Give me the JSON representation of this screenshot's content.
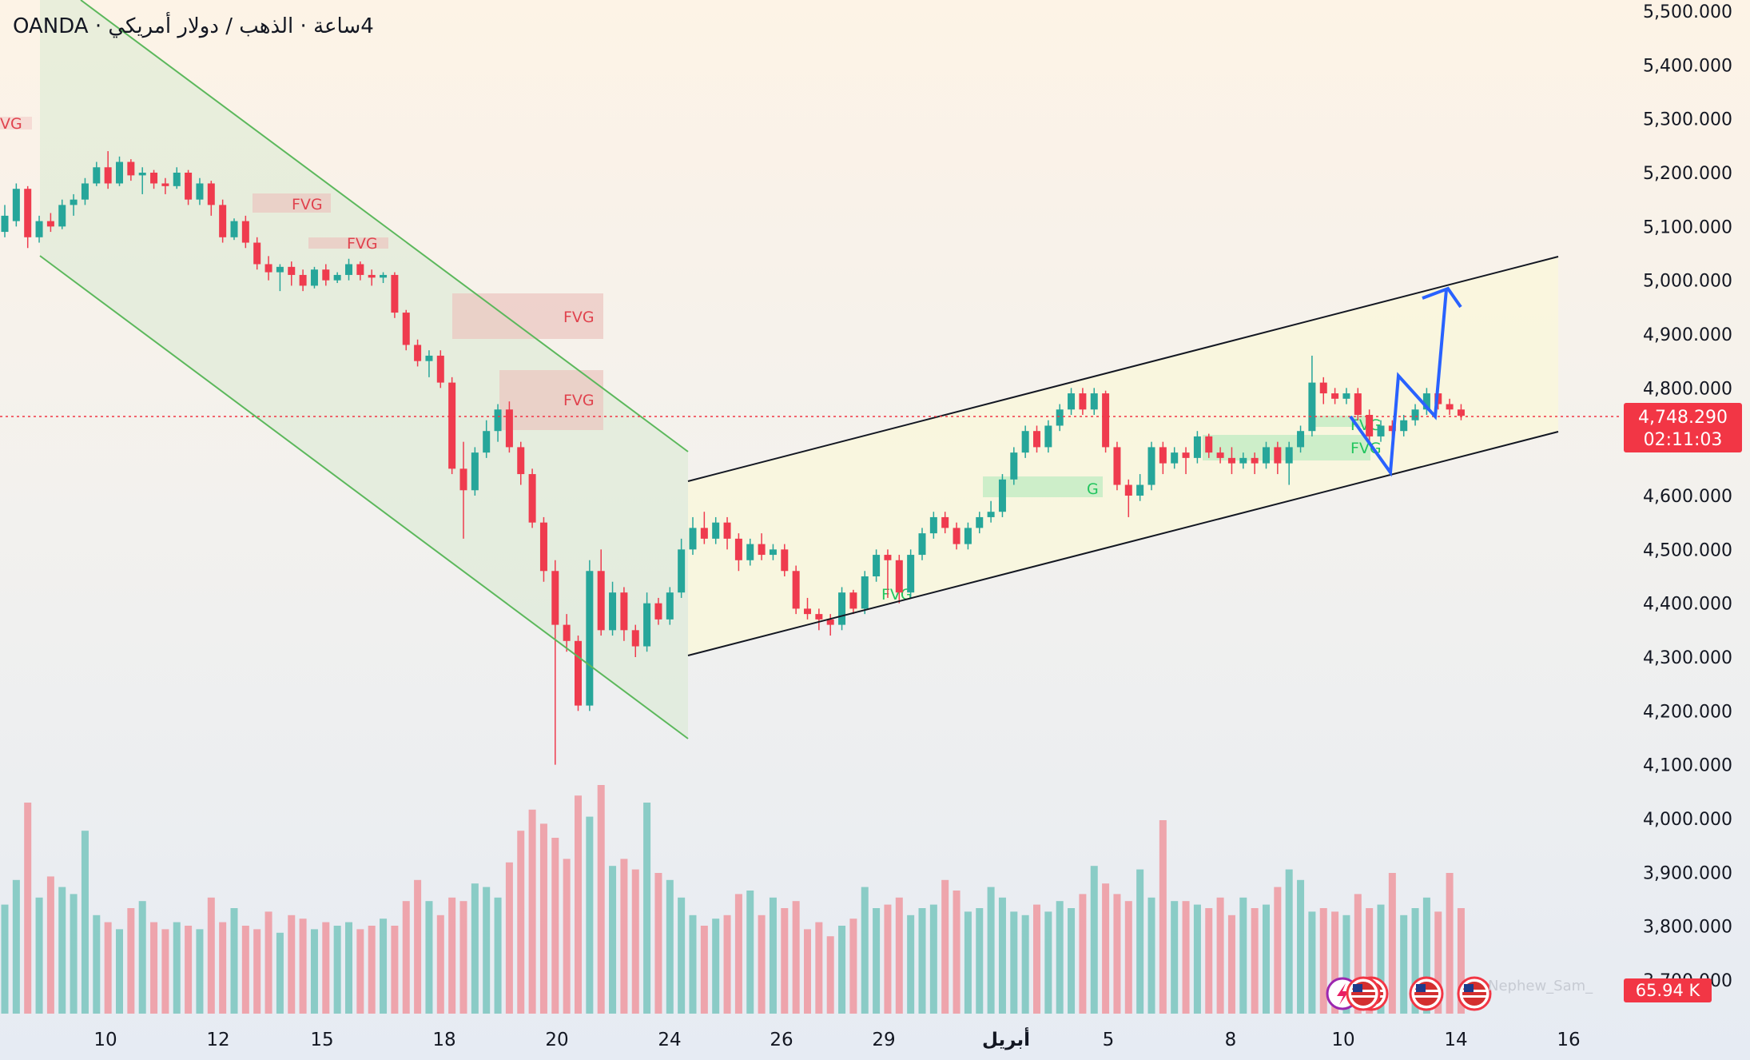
{
  "symbol": {
    "broker": "OANDA",
    "separator": "·",
    "name": "الذهب / دولار أمريكي",
    "interval": "4ساعة"
  },
  "watermark": "Nephew_Sam_",
  "colors": {
    "up": "#26a69a",
    "down": "#ef3b4e",
    "blue_arrow": "#2962ff",
    "channel_down": "#66bb6a",
    "price_label": "#f23645"
  },
  "chart_data": {
    "type": "candlestick",
    "price_axis": {
      "ticks": [
        "5,500.000",
        "5,400.000",
        "5,300.000",
        "5,200.000",
        "5,100.000",
        "5,000.000",
        "4,900.000",
        "4,800.000",
        "4,600.000",
        "4,500.000",
        "4,400.000",
        "4,300.000",
        "4,200.000",
        "4,100.000",
        "4,000.000",
        "3,900.000",
        "3,800.000",
        "3,700.000"
      ],
      "tick_values": [
        5500,
        5400,
        5300,
        5200,
        5100,
        5000,
        4900,
        4800,
        4600,
        4500,
        4400,
        4300,
        4200,
        4100,
        4000,
        3900,
        3800,
        3700
      ],
      "range": [
        3680,
        5520
      ]
    },
    "time_axis": {
      "labels": [
        "10",
        "12",
        "15",
        "18",
        "20",
        "24",
        "26",
        "29",
        "أبريل",
        "5",
        "8",
        "10",
        "14",
        "16"
      ]
    },
    "current_price": {
      "value": 4748.29,
      "label": "4,748.290",
      "countdown": "02:11:03"
    },
    "volume_label": "65.94 K",
    "candles": [
      [
        5090,
        5120,
        5080,
        5140
      ],
      [
        5110,
        5170,
        5100,
        5180
      ],
      [
        5170,
        5080,
        5060,
        5175
      ],
      [
        5080,
        5110,
        5070,
        5120
      ],
      [
        5110,
        5100,
        5090,
        5125
      ],
      [
        5100,
        5140,
        5095,
        5150
      ],
      [
        5140,
        5150,
        5120,
        5160
      ],
      [
        5150,
        5180,
        5140,
        5190
      ],
      [
        5180,
        5210,
        5175,
        5220
      ],
      [
        5210,
        5180,
        5170,
        5240
      ],
      [
        5180,
        5220,
        5175,
        5230
      ],
      [
        5220,
        5195,
        5185,
        5225
      ],
      [
        5195,
        5200,
        5160,
        5210
      ],
      [
        5200,
        5180,
        5170,
        5205
      ],
      [
        5180,
        5175,
        5160,
        5190
      ],
      [
        5175,
        5200,
        5170,
        5210
      ],
      [
        5200,
        5150,
        5140,
        5205
      ],
      [
        5150,
        5180,
        5140,
        5190
      ],
      [
        5180,
        5140,
        5120,
        5185
      ],
      [
        5140,
        5080,
        5070,
        5150
      ],
      [
        5080,
        5110,
        5075,
        5115
      ],
      [
        5110,
        5070,
        5060,
        5120
      ],
      [
        5070,
        5030,
        5020,
        5080
      ],
      [
        5030,
        5015,
        5000,
        5045
      ],
      [
        5015,
        5025,
        4980,
        5030
      ],
      [
        5025,
        5010,
        4990,
        5035
      ],
      [
        5010,
        4990,
        4980,
        5020
      ],
      [
        4990,
        5020,
        4985,
        5025
      ],
      [
        5020,
        5000,
        4990,
        5030
      ],
      [
        5000,
        5010,
        4995,
        5015
      ],
      [
        5010,
        5030,
        5000,
        5040
      ],
      [
        5030,
        5010,
        5000,
        5035
      ],
      [
        5010,
        5005,
        4990,
        5020
      ],
      [
        5005,
        5010,
        4995,
        5015
      ],
      [
        5010,
        4940,
        4930,
        5015
      ],
      [
        4940,
        4880,
        4870,
        4945
      ],
      [
        4880,
        4850,
        4840,
        4890
      ],
      [
        4850,
        4860,
        4820,
        4870
      ],
      [
        4860,
        4810,
        4800,
        4870
      ],
      [
        4810,
        4650,
        4640,
        4820
      ],
      [
        4650,
        4610,
        4520,
        4700
      ],
      [
        4610,
        4680,
        4600,
        4690
      ],
      [
        4680,
        4720,
        4670,
        4740
      ],
      [
        4720,
        4760,
        4700,
        4770
      ],
      [
        4760,
        4690,
        4680,
        4775
      ],
      [
        4690,
        4640,
        4620,
        4700
      ],
      [
        4640,
        4550,
        4540,
        4650
      ],
      [
        4550,
        4460,
        4440,
        4560
      ],
      [
        4460,
        4360,
        4100,
        4480
      ],
      [
        4360,
        4330,
        4310,
        4380
      ],
      [
        4330,
        4210,
        4200,
        4340
      ],
      [
        4210,
        4460,
        4200,
        4480
      ],
      [
        4460,
        4350,
        4340,
        4500
      ],
      [
        4350,
        4420,
        4340,
        4440
      ],
      [
        4420,
        4350,
        4330,
        4430
      ],
      [
        4350,
        4320,
        4300,
        4360
      ],
      [
        4320,
        4400,
        4310,
        4420
      ],
      [
        4400,
        4370,
        4360,
        4410
      ],
      [
        4370,
        4420,
        4360,
        4430
      ],
      [
        4420,
        4500,
        4410,
        4520
      ],
      [
        4500,
        4540,
        4490,
        4560
      ],
      [
        4540,
        4520,
        4510,
        4570
      ],
      [
        4520,
        4550,
        4510,
        4560
      ],
      [
        4550,
        4520,
        4500,
        4560
      ],
      [
        4520,
        4480,
        4460,
        4530
      ],
      [
        4480,
        4510,
        4470,
        4520
      ],
      [
        4510,
        4490,
        4480,
        4530
      ],
      [
        4490,
        4500,
        4480,
        4510
      ],
      [
        4500,
        4460,
        4450,
        4510
      ],
      [
        4460,
        4390,
        4380,
        4470
      ],
      [
        4390,
        4380,
        4370,
        4410
      ],
      [
        4380,
        4370,
        4350,
        4390
      ],
      [
        4370,
        4360,
        4340,
        4380
      ],
      [
        4360,
        4420,
        4350,
        4430
      ],
      [
        4420,
        4390,
        4380,
        4425
      ],
      [
        4390,
        4450,
        4380,
        4460
      ],
      [
        4450,
        4490,
        4440,
        4500
      ],
      [
        4490,
        4480,
        4410,
        4500
      ],
      [
        4480,
        4420,
        4400,
        4490
      ],
      [
        4420,
        4490,
        4410,
        4500
      ],
      [
        4490,
        4530,
        4480,
        4540
      ],
      [
        4530,
        4560,
        4520,
        4570
      ],
      [
        4560,
        4540,
        4530,
        4570
      ],
      [
        4540,
        4510,
        4500,
        4550
      ],
      [
        4510,
        4540,
        4500,
        4550
      ],
      [
        4540,
        4560,
        4530,
        4570
      ],
      [
        4560,
        4570,
        4550,
        4590
      ],
      [
        4570,
        4630,
        4560,
        4640
      ],
      [
        4630,
        4680,
        4620,
        4690
      ],
      [
        4680,
        4720,
        4670,
        4730
      ],
      [
        4720,
        4690,
        4680,
        4730
      ],
      [
        4690,
        4730,
        4680,
        4740
      ],
      [
        4730,
        4760,
        4720,
        4770
      ],
      [
        4760,
        4790,
        4750,
        4800
      ],
      [
        4790,
        4760,
        4750,
        4800
      ],
      [
        4760,
        4790,
        4750,
        4800
      ],
      [
        4790,
        4690,
        4680,
        4795
      ],
      [
        4690,
        4620,
        4610,
        4700
      ],
      [
        4620,
        4600,
        4560,
        4630
      ],
      [
        4600,
        4620,
        4590,
        4640
      ],
      [
        4620,
        4690,
        4610,
        4700
      ],
      [
        4690,
        4660,
        4640,
        4700
      ],
      [
        4660,
        4680,
        4650,
        4690
      ],
      [
        4680,
        4670,
        4640,
        4690
      ],
      [
        4670,
        4710,
        4660,
        4720
      ],
      [
        4710,
        4680,
        4670,
        4715
      ],
      [
        4680,
        4670,
        4660,
        4690
      ],
      [
        4670,
        4660,
        4640,
        4690
      ],
      [
        4660,
        4670,
        4650,
        4680
      ],
      [
        4670,
        4660,
        4640,
        4680
      ],
      [
        4660,
        4690,
        4650,
        4700
      ],
      [
        4690,
        4660,
        4640,
        4700
      ],
      [
        4660,
        4690,
        4620,
        4700
      ],
      [
        4690,
        4720,
        4680,
        4730
      ],
      [
        4720,
        4810,
        4710,
        4860
      ],
      [
        4810,
        4790,
        4770,
        4820
      ],
      [
        4790,
        4780,
        4770,
        4800
      ],
      [
        4780,
        4790,
        4770,
        4800
      ],
      [
        4790,
        4750,
        4740,
        4800
      ],
      [
        4750,
        4710,
        4700,
        4760
      ],
      [
        4710,
        4730,
        4700,
        4740
      ],
      [
        4730,
        4720,
        4700,
        4740
      ],
      [
        4720,
        4740,
        4710,
        4750
      ],
      [
        4740,
        4760,
        4730,
        4770
      ],
      [
        4760,
        4790,
        4750,
        4800
      ],
      [
        4790,
        4770,
        4760,
        4800
      ],
      [
        4770,
        4760,
        4750,
        4780
      ],
      [
        4760,
        4748.29,
        4740,
        4770
      ]
    ],
    "volumes": [
      310,
      380,
      600,
      330,
      390,
      360,
      340,
      520,
      280,
      260,
      240,
      300,
      320,
      260,
      240,
      260,
      250,
      240,
      330,
      260,
      300,
      250,
      240,
      290,
      230,
      280,
      270,
      240,
      260,
      250,
      260,
      240,
      250,
      270,
      250,
      320,
      380,
      320,
      280,
      330,
      320,
      370,
      360,
      330,
      430,
      520,
      580,
      540,
      500,
      440,
      620,
      560,
      650,
      420,
      440,
      410,
      600,
      400,
      380,
      330,
      280,
      250,
      270,
      280,
      340,
      350,
      280,
      330,
      300,
      320,
      240,
      260,
      220,
      250,
      270,
      360,
      300,
      310,
      330,
      280,
      300,
      310,
      380,
      350,
      290,
      300,
      360,
      330,
      290,
      280,
      310,
      290,
      320,
      300,
      340,
      420,
      370,
      340,
      320,
      410,
      330,
      550,
      320,
      320,
      310,
      300,
      330,
      280,
      330,
      300,
      310,
      360,
      410,
      380,
      290,
      300,
      290,
      280,
      340,
      300,
      310,
      400,
      280,
      300,
      330,
      290,
      400,
      300
    ],
    "vol_max": 1100,
    "annotations": {
      "fvg_label": "FVG",
      "partial_left_label": "VG",
      "partial_green_label": "G"
    }
  }
}
